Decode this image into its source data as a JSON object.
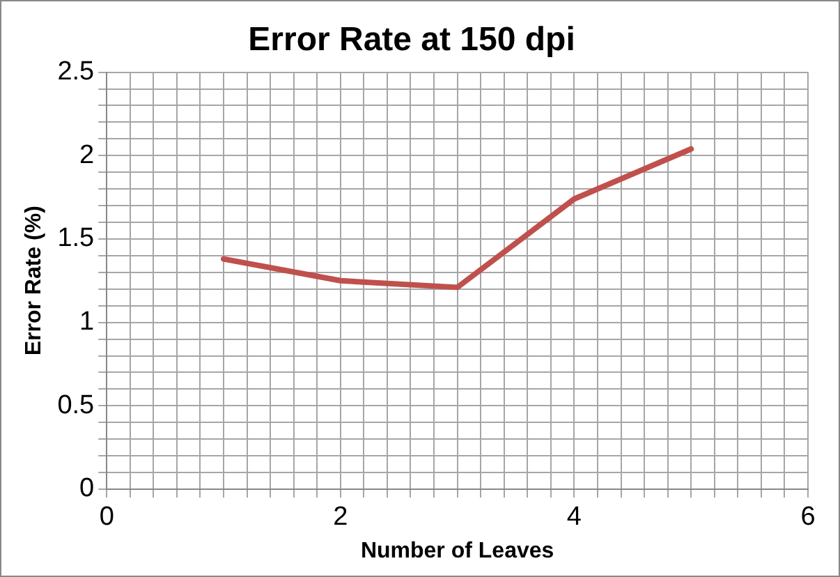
{
  "chart_data": {
    "type": "line",
    "title": "Error Rate at 150 dpi",
    "xlabel": "Number of Leaves",
    "ylabel": "Error Rate (%)",
    "x": [
      1,
      2,
      3,
      4,
      5
    ],
    "series": [
      {
        "color": "#c0504d",
        "values": [
          1.38,
          1.25,
          1.21,
          1.74,
          2.04
        ]
      }
    ],
    "xlim": [
      0,
      6
    ],
    "xticks": [
      0,
      {
        "value": 0.2,
        "label": null
      },
      {
        "value": 0.4,
        "label": null
      },
      {
        "value": 0.6,
        "label": null
      },
      {
        "value": 0.8,
        "label": null
      },
      {
        "value": 1,
        "label": null
      },
      {
        "value": 1.2,
        "label": null
      },
      {
        "value": 1.4,
        "label": null
      },
      {
        "value": 1.6,
        "label": null
      },
      {
        "value": 1.8,
        "label": null
      },
      2,
      {
        "value": 2.2,
        "label": null
      },
      {
        "value": 2.4,
        "label": null
      },
      {
        "value": 2.6,
        "label": null
      },
      {
        "value": 2.8,
        "label": null
      },
      {
        "value": 3,
        "label": null
      },
      {
        "value": 3.2,
        "label": null
      },
      {
        "value": 3.4,
        "label": null
      },
      {
        "value": 3.6,
        "label": null
      },
      {
        "value": 3.8,
        "label": null
      },
      4,
      {
        "value": 4.2,
        "label": null
      },
      {
        "value": 4.4,
        "label": null
      },
      {
        "value": 4.6,
        "label": null
      },
      {
        "value": 4.8,
        "label": null
      },
      {
        "value": 5,
        "label": null
      },
      {
        "value": 5.2,
        "label": null
      },
      {
        "value": 5.4,
        "label": null
      },
      {
        "value": 5.6,
        "label": null
      },
      {
        "value": 5.8,
        "label": null
      },
      6
    ],
    "ylim": [
      0,
      2.5
    ],
    "yticks": [
      0,
      {
        "value": 0.1,
        "label": null
      },
      {
        "value": 0.2,
        "label": null
      },
      {
        "value": 0.3,
        "label": null
      },
      {
        "value": 0.4,
        "label": null
      },
      0.5,
      {
        "value": 0.6,
        "label": null
      },
      {
        "value": 0.7,
        "label": null
      },
      {
        "value": 0.8,
        "label": null
      },
      {
        "value": 0.9,
        "label": null
      },
      1,
      {
        "value": 1.1,
        "label": null
      },
      {
        "value": 1.2,
        "label": null
      },
      {
        "value": 1.3,
        "label": null
      },
      {
        "value": 1.4,
        "label": null
      },
      1.5,
      {
        "value": 1.6,
        "label": null
      },
      {
        "value": 1.7,
        "label": null
      },
      {
        "value": 1.8,
        "label": null
      },
      {
        "value": 1.9,
        "label": null
      },
      2,
      {
        "value": 2.1,
        "label": null
      },
      {
        "value": 2.2,
        "label": null
      },
      {
        "value": 2.3,
        "label": null
      },
      {
        "value": 2.4,
        "label": null
      },
      2.5
    ],
    "grid": true,
    "legend": false,
    "marker": "none",
    "line_style": "solid"
  }
}
